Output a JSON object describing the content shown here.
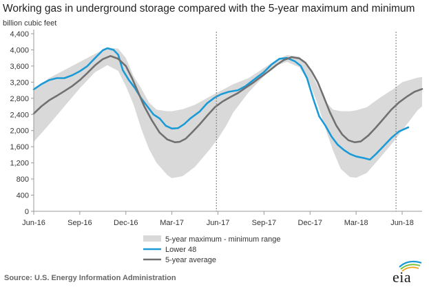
{
  "colors": {
    "range": "#d9d9d9",
    "lower48": "#1a9ad6",
    "avg": "#707070",
    "axis": "#999999",
    "dashed": "#888888"
  },
  "source_text": "Source:  U.S. Energy Information Administration",
  "logo_text": "eia",
  "chart_data": {
    "type": "line",
    "title": "Working gas in underground  storage compared with the 5-year maximum and minimum",
    "ylabel": "billion cubic feet",
    "xlabel": "",
    "ylim": [
      0,
      4400
    ],
    "yticks": [
      0,
      400,
      800,
      1200,
      1600,
      2000,
      2400,
      2800,
      3200,
      3600,
      4000,
      4400
    ],
    "ytick_labels": [
      "0",
      "400",
      "800",
      "1,200",
      "1,600",
      "2,000",
      "2,400",
      "2,800",
      "3,200",
      "3,600",
      "4,000",
      "4,400"
    ],
    "xlim": [
      0,
      25.3
    ],
    "xticks": [
      0,
      3,
      6,
      9,
      12,
      15,
      18,
      21,
      24
    ],
    "xtick_labels": [
      "Jun-16",
      "Sep-16",
      "Dec-16",
      "Mar-17",
      "Jun-17",
      "Sep-17",
      "Dec-17",
      "Mar-18",
      "Jun-18"
    ],
    "vertical_markers": [
      11.9,
      23.6
    ],
    "legend_position": "bottom",
    "series": [
      {
        "name": "5-year maximum - minimum range",
        "kind": "band",
        "x": [
          0,
          1,
          2,
          3,
          4,
          4.8,
          5.5,
          6,
          6.5,
          7,
          7.5,
          8,
          8.7,
          9,
          9.7,
          10.5,
          11.5,
          12,
          12.5,
          13,
          14,
          15,
          15.8,
          16.5,
          17.3,
          18,
          18.5,
          19,
          19.5,
          20,
          20.6,
          21,
          21.7,
          22.5,
          23.5,
          24,
          25,
          25.3
        ],
        "upper": [
          3020,
          3300,
          3500,
          3700,
          3900,
          4060,
          4030,
          3800,
          3350,
          3050,
          2700,
          2520,
          2480,
          2480,
          2530,
          2640,
          2850,
          2950,
          3050,
          3150,
          3300,
          3550,
          3750,
          3870,
          3830,
          3500,
          3100,
          2720,
          2520,
          2480,
          2480,
          2500,
          2580,
          2800,
          3050,
          3200,
          3310,
          3330
        ],
        "lower": [
          1720,
          2150,
          2600,
          3050,
          3450,
          3620,
          3480,
          3100,
          2650,
          2050,
          1550,
          1200,
          900,
          820,
          870,
          1100,
          1550,
          1800,
          2100,
          2450,
          2950,
          3350,
          3620,
          3700,
          3570,
          3150,
          2650,
          2050,
          1500,
          1050,
          850,
          830,
          950,
          1300,
          1750,
          2000,
          2500,
          2600
        ]
      },
      {
        "name": "Lower 48",
        "kind": "line",
        "x": [
          0,
          0.5,
          1,
          1.5,
          2,
          2.5,
          3,
          3.5,
          4,
          4.5,
          4.8,
          5.2,
          5.5,
          5.8,
          6.2,
          6.6,
          7,
          7.5,
          7.8,
          8.2,
          8.6,
          9,
          9.4,
          9.8,
          10.2,
          10.8,
          11.3,
          11.8,
          12.2,
          12.7,
          13.3,
          13.8,
          14.3,
          15,
          15.5,
          16,
          16.5,
          17,
          17.4,
          17.8,
          18.2,
          18.6,
          19,
          19.4,
          19.8,
          20.2,
          20.6,
          21,
          21.5,
          21.9,
          22.3,
          22.8,
          23.3,
          23.8,
          24.4
        ],
        "y": [
          3020,
          3150,
          3250,
          3300,
          3300,
          3370,
          3470,
          3600,
          3800,
          3990,
          4040,
          4000,
          3880,
          3500,
          3250,
          3050,
          2800,
          2550,
          2400,
          2300,
          2120,
          2050,
          2060,
          2160,
          2300,
          2470,
          2680,
          2820,
          2900,
          2960,
          3000,
          3100,
          3250,
          3450,
          3640,
          3780,
          3800,
          3720,
          3600,
          3300,
          2800,
          2350,
          2120,
          1850,
          1650,
          1520,
          1420,
          1360,
          1320,
          1280,
          1420,
          1620,
          1820,
          1980,
          2080
        ]
      },
      {
        "name": "5-year average",
        "kind": "line",
        "x": [
          0,
          0.5,
          1,
          1.5,
          2,
          2.5,
          3,
          3.5,
          4,
          4.5,
          5,
          5.5,
          6,
          6.4,
          6.8,
          7.2,
          7.7,
          8.2,
          8.7,
          9.2,
          9.5,
          9.9,
          10.3,
          10.8,
          11.3,
          11.8,
          12.3,
          12.8,
          13.3,
          13.8,
          14.3,
          14.8,
          15.3,
          15.8,
          16.3,
          16.8,
          17.3,
          17.7,
          18.1,
          18.5,
          18.9,
          19.3,
          19.7,
          20.1,
          20.5,
          20.9,
          21.3,
          21.8,
          22.3,
          22.8,
          23.3,
          23.8,
          24.3,
          24.8,
          25.3
        ],
        "y": [
          2420,
          2600,
          2750,
          2860,
          2980,
          3100,
          3250,
          3430,
          3620,
          3770,
          3850,
          3780,
          3600,
          3300,
          2950,
          2600,
          2250,
          1950,
          1780,
          1710,
          1720,
          1800,
          1950,
          2150,
          2370,
          2580,
          2720,
          2830,
          2930,
          3060,
          3190,
          3330,
          3470,
          3620,
          3750,
          3820,
          3790,
          3680,
          3470,
          3200,
          2830,
          2450,
          2130,
          1900,
          1760,
          1710,
          1730,
          1880,
          2080,
          2300,
          2520,
          2700,
          2840,
          2960,
          3030
        ]
      }
    ]
  }
}
